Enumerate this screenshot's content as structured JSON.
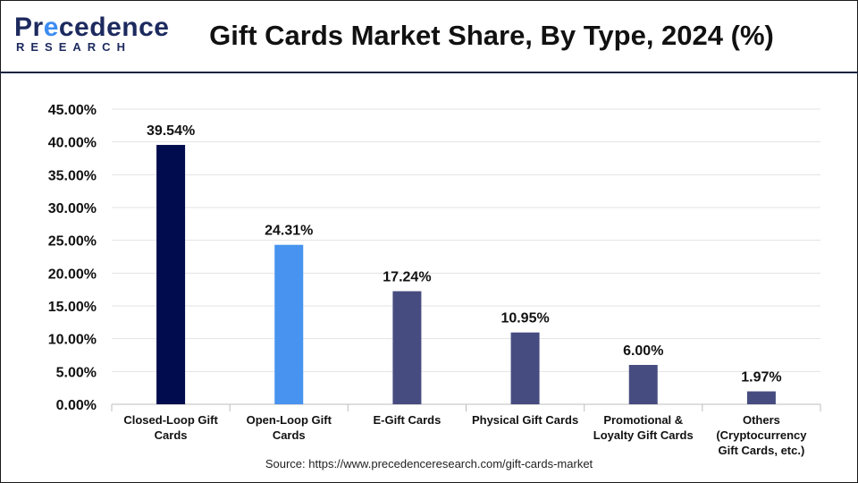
{
  "logo": {
    "brand_main_prefix": "Pr",
    "brand_main_mark": "e",
    "brand_main_suffix": "cedence",
    "brand_sub": "RESEARCH"
  },
  "title": "Gift Cards Market Share, By Type, 2024 (%)",
  "source": "Source: https://www.precedenceresearch.com/gift-cards-market",
  "colors": {
    "accent": "#3d8df2",
    "brand": "#1c2a5e"
  },
  "chart_data": {
    "type": "bar",
    "title": "Gift Cards Market Share, By Type, 2024 (%)",
    "categories": [
      [
        "Closed-Loop Gift",
        "Cards"
      ],
      [
        "Open-Loop Gift",
        "Cards"
      ],
      [
        "E-Gift Cards"
      ],
      [
        "Physical Gift Cards"
      ],
      [
        "Promotional &",
        "Loyalty Gift Cards"
      ],
      [
        "Others",
        "(Cryptocurrency",
        "Gift Cards, etc.)"
      ]
    ],
    "values": [
      39.54,
      24.31,
      17.24,
      10.95,
      6.0,
      1.97
    ],
    "value_labels": [
      "39.54%",
      "24.31%",
      "17.24%",
      "10.95%",
      "6.00%",
      "1.97%"
    ],
    "bar_colors": [
      "#000c4d",
      "#4793ef",
      "#474c80",
      "#474c80",
      "#474c80",
      "#474c80"
    ],
    "ylim": [
      0,
      45
    ],
    "yticks": [
      0,
      5,
      10,
      15,
      20,
      25,
      30,
      35,
      40,
      45
    ],
    "ytick_labels": [
      "0.00%",
      "5.00%",
      "10.00%",
      "15.00%",
      "20.00%",
      "25.00%",
      "30.00%",
      "35.00%",
      "40.00%",
      "45.00%"
    ],
    "grid": true,
    "legend": "none"
  }
}
